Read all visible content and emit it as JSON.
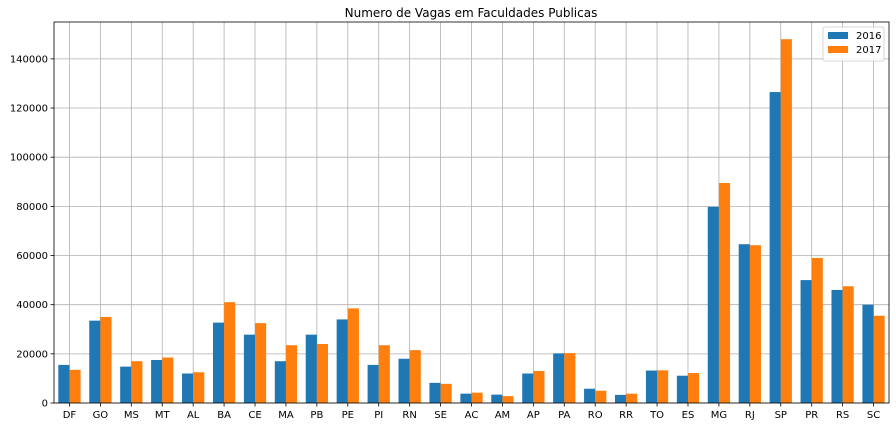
{
  "chart_data": {
    "type": "bar",
    "title": "Numero de Vagas em Faculdades Publicas",
    "xlabel": "",
    "ylabel": "",
    "categories": [
      "DF",
      "GO",
      "MS",
      "MT",
      "AL",
      "BA",
      "CE",
      "MA",
      "PB",
      "PE",
      "PI",
      "RN",
      "SE",
      "AC",
      "AM",
      "AP",
      "PA",
      "RO",
      "RR",
      "TO",
      "ES",
      "MG",
      "RJ",
      "SP",
      "PR",
      "RS",
      "SC"
    ],
    "series": [
      {
        "name": "2016",
        "color": "#1f77b4",
        "values": [
          15500,
          33500,
          14800,
          17500,
          12000,
          32700,
          27800,
          17000,
          27800,
          34000,
          15500,
          18000,
          8200,
          3800,
          3400,
          12000,
          20200,
          5800,
          3300,
          13200,
          11100,
          79800,
          64600,
          126500,
          50000,
          46000,
          40000
        ]
      },
      {
        "name": "2017",
        "color": "#ff7f0e",
        "values": [
          13500,
          35000,
          17000,
          18500,
          12500,
          41000,
          32500,
          23500,
          24000,
          38500,
          23500,
          21500,
          7800,
          4200,
          2800,
          13000,
          20300,
          5000,
          3800,
          13300,
          12200,
          89500,
          64200,
          148000,
          59000,
          47500,
          35500
        ]
      }
    ],
    "yticks": [
      0,
      20000,
      40000,
      60000,
      80000,
      100000,
      120000,
      140000
    ],
    "ylim": [
      0,
      155000
    ],
    "grid": true,
    "legend_position": "top-right"
  }
}
